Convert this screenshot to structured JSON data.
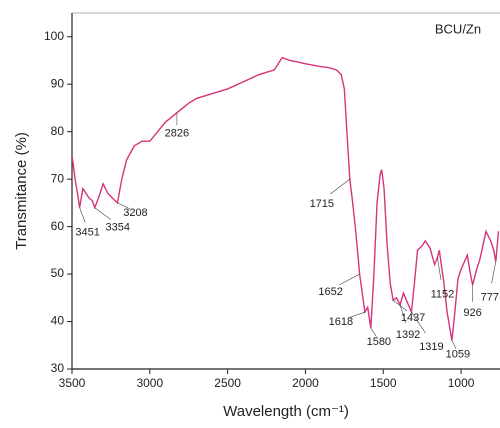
{
  "chart_data": {
    "type": "line",
    "legend_text": "BCU/Zn",
    "x_label": "Wavelength (cm⁻¹)",
    "y_label": "Transmitance (%)",
    "xlim": [
      3500,
      750
    ],
    "ylim": [
      30,
      105
    ],
    "xticks": [
      3500,
      3000,
      2500,
      2000,
      1500,
      1000
    ],
    "yticks": [
      30,
      40,
      50,
      60,
      70,
      80,
      90,
      100
    ],
    "series": [
      {
        "name": "BCU/Zn",
        "color": "#d6337a",
        "x": [
          3500,
          3480,
          3460,
          3451,
          3430,
          3410,
          3390,
          3370,
          3354,
          3330,
          3300,
          3270,
          3240,
          3208,
          3180,
          3150,
          3100,
          3050,
          3000,
          2950,
          2900,
          2826,
          2750,
          2700,
          2600,
          2500,
          2400,
          2300,
          2200,
          2150,
          2100,
          2050,
          2000,
          1950,
          1900,
          1850,
          1800,
          1770,
          1750,
          1730,
          1715,
          1700,
          1680,
          1660,
          1652,
          1635,
          1618,
          1600,
          1580,
          1560,
          1540,
          1520,
          1510,
          1495,
          1475,
          1455,
          1437,
          1415,
          1392,
          1370,
          1345,
          1319,
          1300,
          1280,
          1250,
          1230,
          1200,
          1170,
          1152,
          1140,
          1110,
          1090,
          1059,
          1040,
          1020,
          1000,
          960,
          940,
          926,
          900,
          880,
          840,
          810,
          790,
          777,
          760
        ],
        "values": [
          75,
          70,
          66,
          64,
          68,
          67,
          66,
          65.5,
          64,
          66,
          69,
          67,
          66,
          65,
          70,
          74,
          77,
          78,
          78,
          80,
          82,
          84,
          86,
          87,
          88,
          89,
          90.5,
          92,
          93,
          95.6,
          95,
          94.7,
          94.3,
          94,
          93.7,
          93.5,
          93,
          92,
          89,
          78,
          70,
          66,
          60,
          53,
          50,
          46,
          42,
          43,
          38.6,
          50,
          65,
          71,
          72,
          68,
          56,
          48,
          44.5,
          45,
          43.5,
          46,
          44,
          42,
          48,
          55,
          56,
          57,
          55.5,
          52,
          53.5,
          55,
          48,
          42,
          36,
          42,
          49,
          51,
          54,
          50,
          47.7,
          51,
          53,
          59,
          57,
          55,
          52.6,
          59
        ]
      }
    ],
    "annotations": [
      {
        "value": 3451,
        "label": "3451"
      },
      {
        "value": 3354,
        "label": "3354"
      },
      {
        "value": 3208,
        "label": "3208"
      },
      {
        "value": 2826,
        "label": "2826"
      },
      {
        "value": 1715,
        "label": "1715"
      },
      {
        "value": 1652,
        "label": "1652"
      },
      {
        "value": 1618,
        "label": "1618"
      },
      {
        "value": 1580,
        "label": "1580"
      },
      {
        "value": 1437,
        "label": "1437"
      },
      {
        "value": 1392,
        "label": "1392"
      },
      {
        "value": 1319,
        "label": "1319"
      },
      {
        "value": 1152,
        "label": "1152"
      },
      {
        "value": 1059,
        "label": "1059"
      },
      {
        "value": 926,
        "label": "926"
      },
      {
        "value": 777,
        "label": "777"
      }
    ]
  }
}
